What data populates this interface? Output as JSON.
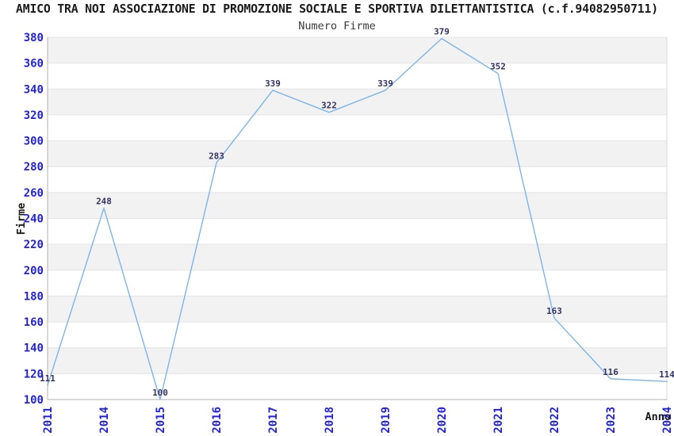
{
  "chart_data": {
    "type": "line",
    "title": "AMICO TRA NOI ASSOCIAZIONE DI PROMOZIONE SOCIALE E SPORTIVA DILETTANTISTICA (c.f.94082950711)",
    "subtitle": "Numero Firme",
    "xlabel": "Anno",
    "ylabel": "Firme",
    "categories": [
      "2011",
      "2014",
      "2015",
      "2016",
      "2017",
      "2018",
      "2019",
      "2020",
      "2021",
      "2022",
      "2023",
      "2024"
    ],
    "values": [
      111,
      248,
      100,
      283,
      339,
      322,
      339,
      379,
      352,
      163,
      116,
      114
    ],
    "ylim": [
      100,
      380
    ],
    "ytick_step": 20,
    "yticks": [
      100,
      120,
      140,
      160,
      180,
      200,
      220,
      240,
      260,
      280,
      300,
      320,
      340,
      360,
      380
    ],
    "grid": "horizontal-bands-alternating",
    "legend": "none",
    "markers": "none",
    "colors": {
      "line": "#7cb5ec",
      "tick_labels": "#2222dd",
      "data_labels": "#333366",
      "band_fill": "#f2f2f2",
      "grid_line": "#e4e4e4",
      "axis_line": "#b0b0b0",
      "plot_border": "#d9d9d9",
      "title_text": "#1a1a1a",
      "subtitle_text": "#3a3a3a"
    }
  }
}
